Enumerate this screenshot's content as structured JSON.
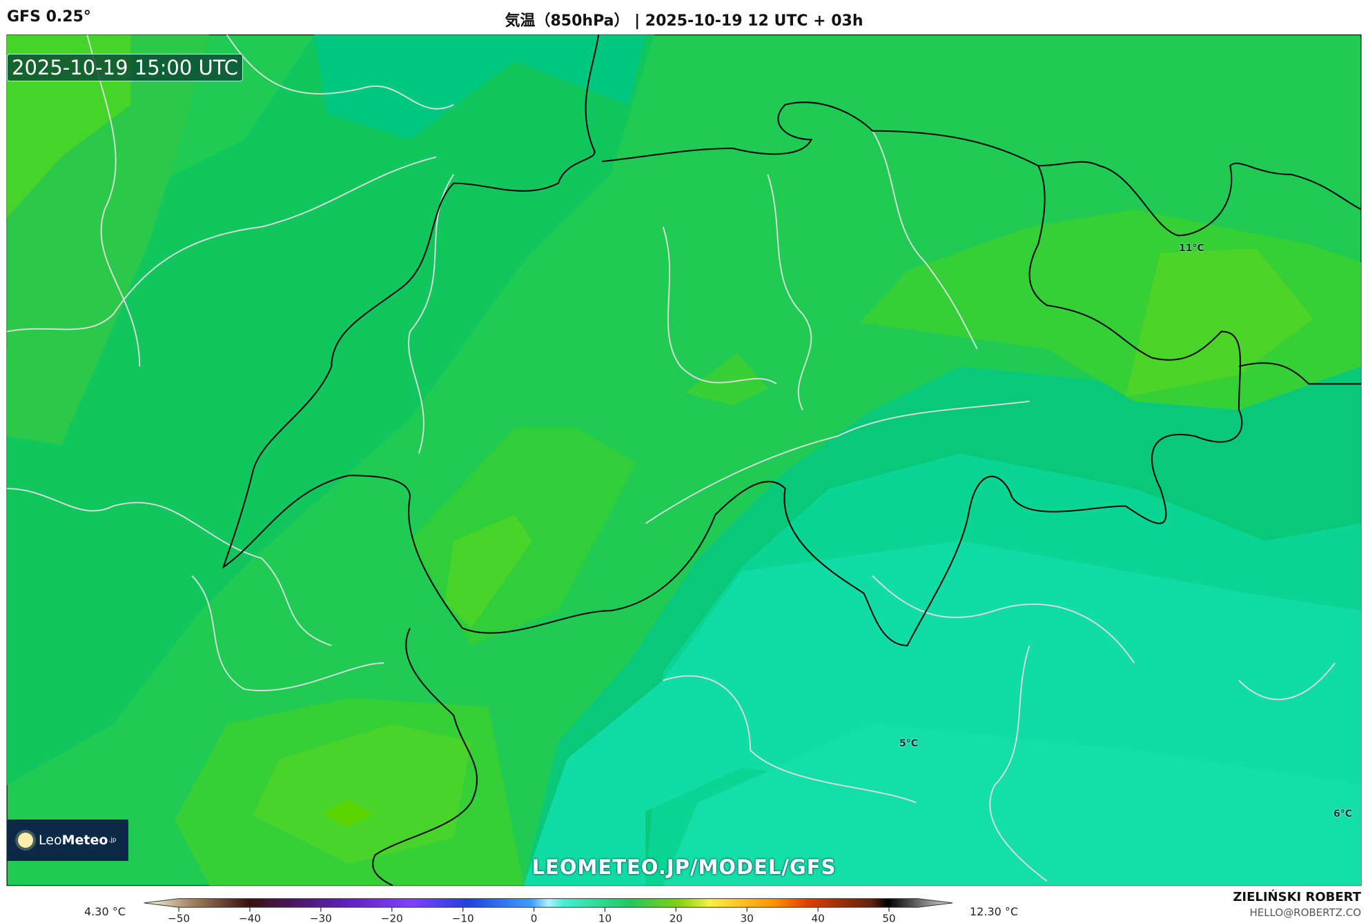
{
  "header": {
    "model": "GFS 0.25°",
    "title": "気温（850hPa） | 2025-10-19 12 UTC + 03h"
  },
  "map": {
    "valid_time": "2025-10-19 15:00 UTC",
    "watermark": "LEOMETEO.JP/MODEL/GFS",
    "contour_labels": [
      "11°C",
      "5°C",
      "6°C"
    ]
  },
  "logo": {
    "light": "Leo",
    "bold": "Meteo",
    "suffix": ".jp"
  },
  "colorbar": {
    "min_label": "4.30 °C",
    "max_label": "12.30 °C",
    "ticks": [
      "−50",
      "−40",
      "−30",
      "−20",
      "−10",
      "0",
      "10",
      "20",
      "30",
      "40",
      "50"
    ],
    "range": [
      -55,
      55
    ]
  },
  "credits": {
    "author": "ZIELIŃSKI ROBERT",
    "email": "HELLO@ROBERTZ.CO"
  },
  "colors": {
    "base": "#1fcb52",
    "warm": "#4cd428",
    "cool": "#0ad592",
    "coolest": "#12dca5"
  }
}
